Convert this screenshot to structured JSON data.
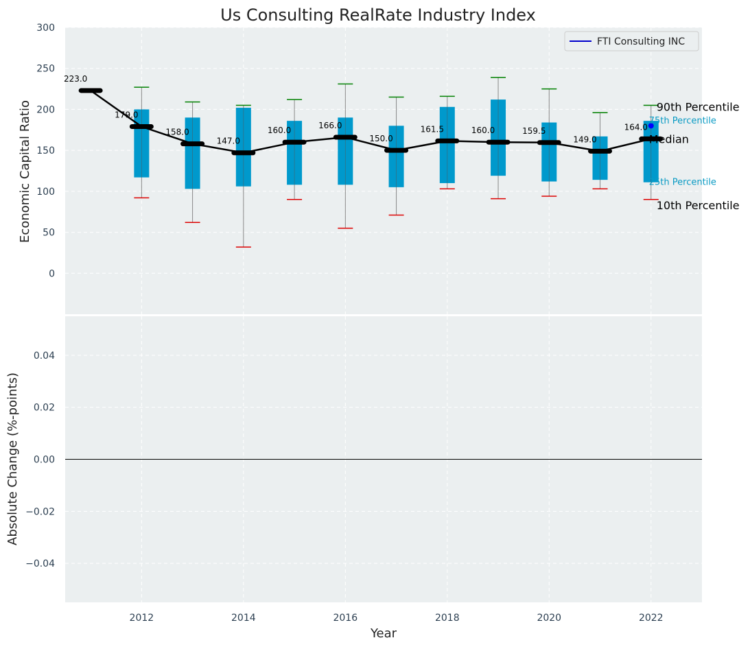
{
  "chart_data": {
    "type": "box",
    "title": "Us Consulting RealRate Industry Index",
    "xlabel": "Year",
    "top_panel": {
      "ylabel": "Economic Capital Ratio",
      "ylim": [
        -50,
        300
      ],
      "yticks": [
        0,
        50,
        100,
        150,
        200,
        250,
        300
      ],
      "years": [
        2011,
        2012,
        2013,
        2014,
        2015,
        2016,
        2017,
        2018,
        2019,
        2020,
        2021,
        2022
      ],
      "median": [
        223.0,
        179.0,
        158.0,
        147.0,
        160.0,
        166.0,
        150.0,
        161.5,
        160.0,
        159.5,
        149.0,
        164.0
      ],
      "median_labels": [
        "223.0",
        "179.0",
        "158.0",
        "147.0",
        "160.0",
        "166.0",
        "150.0",
        "161.5",
        "160.0",
        "159.5",
        "149.0",
        "164.0"
      ],
      "p25": [
        null,
        117,
        103,
        106,
        108,
        108,
        105,
        110,
        119,
        112,
        114,
        111
      ],
      "p75": [
        null,
        200,
        190,
        202,
        186,
        190,
        180,
        203,
        212,
        184,
        167,
        186
      ],
      "p10": [
        null,
        92,
        62,
        32,
        90,
        55,
        71,
        103,
        91,
        94,
        103,
        90
      ],
      "p90": [
        null,
        227,
        209,
        205,
        212,
        231,
        215,
        216,
        239,
        225,
        196,
        205
      ],
      "company_points": [
        {
          "x": 2022,
          "y": 180
        }
      ],
      "percentile_labels": {
        "p90": "90th Percentile",
        "p75": "75th Percentile",
        "median": "Median",
        "p25": "25th Percentile",
        "p10": "10th Percentile"
      }
    },
    "bottom_panel": {
      "ylabel": "Absolute Change (%-points)",
      "ylim": [
        -0.055,
        0.055
      ],
      "yticks": [
        -0.04,
        -0.02,
        0.0,
        0.02,
        0.04
      ],
      "ytick_labels": [
        "−0.04",
        "−0.02",
        "0.00",
        "0.02",
        "0.04"
      ]
    },
    "xlim": [
      2010.5,
      2023
    ],
    "xticks": [
      2012,
      2014,
      2016,
      2018,
      2020,
      2022
    ],
    "legend": {
      "position": "top-right",
      "entries": [
        "FTI Consulting INC"
      ]
    },
    "grid": true,
    "colors": {
      "background": "#ebeff0",
      "box": "#0099cc",
      "median_line": "#000000",
      "whisker": "#888888",
      "p90_cap": "#008000",
      "p10_cap": "#dd0000",
      "legend_line": "#0000cc",
      "company_point": "#0000ff"
    }
  }
}
